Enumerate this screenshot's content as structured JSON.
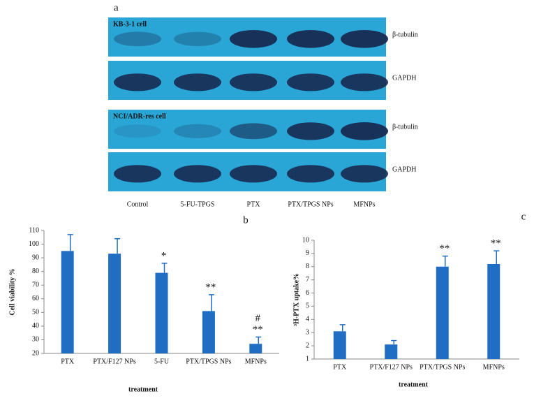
{
  "blot": {
    "label": "a",
    "panels": [
      {
        "cell": "KB-3-1 cell",
        "rows": [
          "β-tubulin",
          "GAPDH"
        ]
      },
      {
        "cell": "NCI/ADR-res cell",
        "rows": [
          "β-tubulin",
          "GAPDH"
        ]
      }
    ],
    "lanes": [
      "Control",
      "5-FU-TPGS",
      "PTX",
      "PTX/TPGS NPs",
      "MFNPs"
    ]
  },
  "chart_data": [
    {
      "type": "bar",
      "panel_label": "b",
      "ylabel": "Cell viability %",
      "xlabel": "treatment",
      "categories": [
        "PTX",
        "PTX/F127 NPs",
        "5-FU",
        "PTX/TPGS NPs",
        "MFNPs"
      ],
      "values": [
        95,
        93,
        79,
        51,
        27
      ],
      "errors": [
        12,
        11,
        7,
        12,
        5
      ],
      "color": "#1f6ec4",
      "ylim": [
        20,
        110
      ],
      "yticks": [
        20,
        30,
        40,
        50,
        60,
        70,
        80,
        90,
        100,
        110
      ],
      "annotations": [
        {
          "category": "5-FU",
          "text": [
            "*"
          ]
        },
        {
          "category": "PTX/TPGS NPs",
          "text": [
            "**"
          ]
        },
        {
          "category": "MFNPs",
          "text": [
            "#",
            "**"
          ]
        }
      ]
    },
    {
      "type": "bar",
      "panel_label": "c",
      "ylabel": "³H-PTX uptake%",
      "xlabel": "treatment",
      "categories": [
        "PTX",
        "PTX/F127 NPs",
        "PTX/TPGS NPs",
        "MFNPs"
      ],
      "values": [
        3.1,
        2.1,
        8.0,
        8.2
      ],
      "errors": [
        0.5,
        0.3,
        0.8,
        1.0
      ],
      "color": "#1f6ec4",
      "ylim": [
        1,
        10
      ],
      "yticks": [
        1,
        2,
        3,
        4,
        5,
        6,
        7,
        8,
        9,
        10
      ],
      "annotations": [
        {
          "category": "PTX/TPGS NPs",
          "text": [
            "**"
          ]
        },
        {
          "category": "MFNPs",
          "text": [
            "**"
          ]
        }
      ]
    }
  ]
}
